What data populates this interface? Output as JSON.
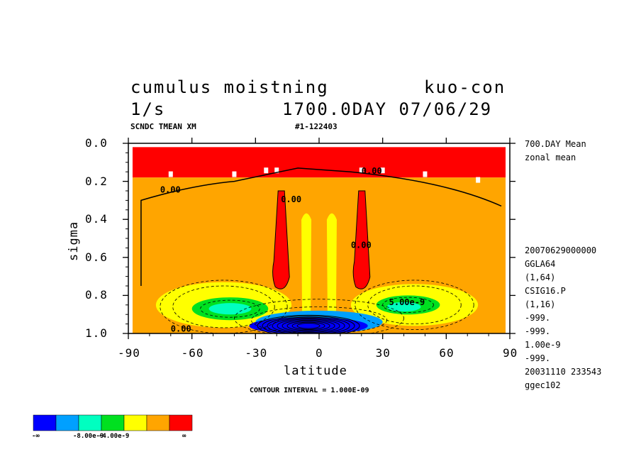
{
  "header": {
    "title_left": "cumulus moistning",
    "title_right": "kuo-con",
    "units": "1/s",
    "date": "1700.0DAY 07/06/29",
    "subtitle_left": "SCNDC TMEAN XM",
    "subtitle_right": "#1-122403"
  },
  "side_info": {
    "lines_top": [
      "700.DAY Mean",
      "zonal mean"
    ],
    "lines_bottom": [
      "20070629000000",
      "GGLA64",
      "(1,64)",
      "CSIG16.P",
      "(1,16)",
      "-999.",
      "-999.",
      "1.00e-9",
      "-999.",
      "20031110 233543",
      "ggec102"
    ]
  },
  "footer": {
    "contour_interval": "CONTOUR INTERVAL = 1.000E-09"
  },
  "colorbar": {
    "colors": [
      "#0000ff",
      "#00a0ff",
      "#00ffc0",
      "#00e020",
      "#ffff00",
      "#ffa500",
      "#ff0000"
    ],
    "labels": [
      "-∞",
      "-8.00e-9",
      "-4.00e-9",
      "∞"
    ]
  },
  "chart_data": {
    "type": "heatmap",
    "title": "cumulus moistning",
    "xlabel": "latitude",
    "ylabel": "sigma",
    "xlim": [
      -90,
      90
    ],
    "ylim": [
      0.0,
      1.0
    ],
    "y_inverted": true,
    "x_ticks": [
      -90,
      -60,
      -30,
      0,
      30,
      60,
      90
    ],
    "x_tick_labels": [
      "-90",
      "-60",
      "-30",
      "0",
      "30",
      "60",
      "90"
    ],
    "y_ticks": [
      0.0,
      0.2,
      0.4,
      0.6,
      0.8,
      1.0
    ],
    "y_tick_labels": [
      "0.0",
      "0.2",
      "0.4",
      "0.6",
      "0.8",
      "1.0"
    ],
    "contour_labels": [
      {
        "text": "0.00",
        "lat": -75,
        "sigma": 0.26
      },
      {
        "text": "0.00",
        "lat": 20,
        "sigma": 0.16
      },
      {
        "text": "0.00",
        "lat": -18,
        "sigma": 0.31
      },
      {
        "text": "0.00",
        "lat": 15,
        "sigma": 0.55
      },
      {
        "text": "5.00e-9",
        "lat": 33,
        "sigma": 0.85
      },
      {
        "text": "0.00",
        "lat": -70,
        "sigma": 0.99
      }
    ],
    "regions": [
      {
        "level": "red",
        "kind": "band",
        "lat": [
          -88,
          88
        ],
        "sigma": [
          0.02,
          0.18
        ]
      },
      {
        "level": "orange",
        "kind": "background",
        "lat": [
          -88,
          88
        ],
        "sigma": [
          0.18,
          1.0
        ]
      },
      {
        "level": "red",
        "kind": "plume",
        "lat_center": -18,
        "sigma_top": 0.25,
        "sigma_bottom": 0.77
      },
      {
        "level": "red",
        "kind": "plume",
        "lat_center": 20,
        "sigma_top": 0.25,
        "sigma_bottom": 0.77
      },
      {
        "level": "yellow",
        "kind": "blob",
        "lat_center": -45,
        "sigma_center": 0.85,
        "lat_radius": 32,
        "sigma_radius": 0.12
      },
      {
        "level": "yellow",
        "kind": "blob",
        "lat_center": 45,
        "sigma_center": 0.85,
        "lat_radius": 30,
        "sigma_radius": 0.11
      },
      {
        "level": "yellow",
        "kind": "column",
        "lat_center": -6,
        "sigma_top": 0.35,
        "sigma_bottom": 0.9
      },
      {
        "level": "yellow",
        "kind": "column",
        "lat_center": 6,
        "sigma_top": 0.35,
        "sigma_bottom": 0.9
      },
      {
        "level": "green",
        "kind": "blob",
        "lat_center": -42,
        "sigma_center": 0.87,
        "lat_radius": 18,
        "sigma_radius": 0.06
      },
      {
        "level": "green",
        "kind": "blob",
        "lat_center": 42,
        "sigma_center": 0.85,
        "lat_radius": 15,
        "sigma_radius": 0.05
      },
      {
        "level": "cyan",
        "kind": "blob",
        "lat_center": -42,
        "sigma_center": 0.87,
        "lat_radius": 10,
        "sigma_radius": 0.03
      },
      {
        "level": "cyan",
        "kind": "blob",
        "lat_center": 40,
        "sigma_center": 0.86,
        "lat_radius": 8,
        "sigma_radius": 0.025
      },
      {
        "level": "lightblue",
        "kind": "blob",
        "lat_center": 0,
        "sigma_center": 0.94,
        "lat_radius": 30,
        "sigma_radius": 0.06
      },
      {
        "level": "blue",
        "kind": "blob",
        "lat_center": -5,
        "sigma_center": 0.96,
        "lat_radius": 28,
        "sigma_radius": 0.045
      }
    ]
  }
}
